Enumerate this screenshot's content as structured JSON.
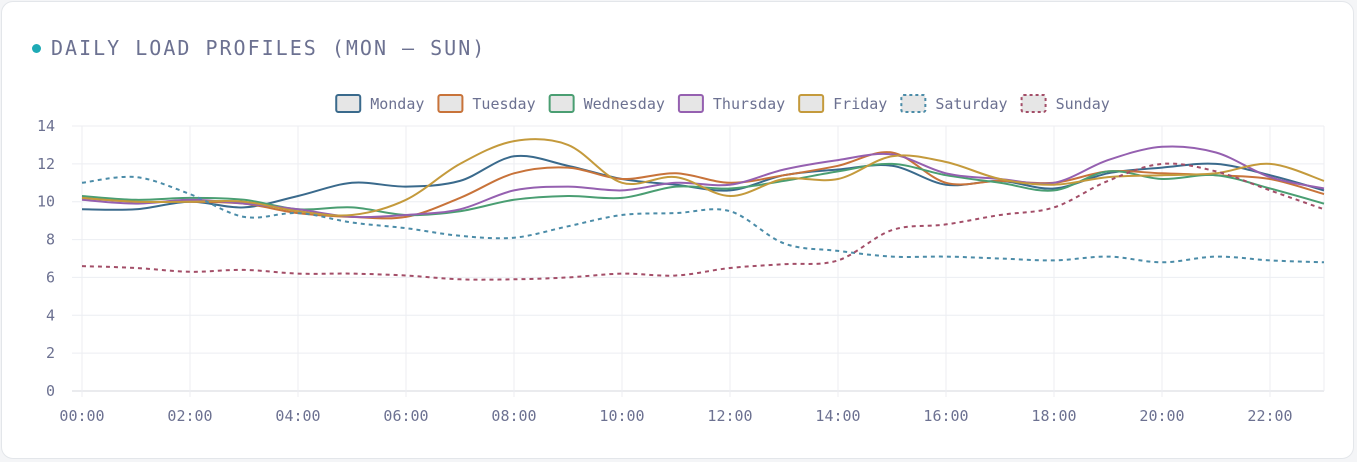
{
  "header": {
    "title": "DAILY LOAD PROFILES (MON – SUN)",
    "accent_color": "#1eaab5"
  },
  "chart_data": {
    "type": "line",
    "x_ticks": [
      "00:00",
      "02:00",
      "04:00",
      "06:00",
      "08:00",
      "10:00",
      "12:00",
      "14:00",
      "16:00",
      "18:00",
      "20:00",
      "22:00"
    ],
    "y_ticks": [
      0,
      2,
      4,
      6,
      8,
      10,
      12,
      14
    ],
    "ylim": [
      0,
      14
    ],
    "xlim_hours": [
      0,
      23
    ],
    "sample_hours": [
      0,
      1,
      2,
      3,
      4,
      5,
      6,
      7,
      8,
      9,
      10,
      11,
      12,
      13,
      14,
      15,
      16,
      17,
      18,
      19,
      20,
      21,
      22,
      23
    ],
    "grid": true,
    "legend_position": "top-center",
    "series": [
      {
        "name": "Monday",
        "color": "#3a6a8c",
        "dashed": false,
        "values": [
          9.6,
          9.6,
          10.0,
          9.7,
          10.3,
          11.0,
          10.8,
          11.1,
          12.4,
          11.9,
          11.2,
          10.9,
          10.6,
          11.4,
          11.7,
          11.9,
          10.9,
          11.1,
          10.7,
          11.5,
          11.8,
          12.0,
          11.4,
          10.6
        ]
      },
      {
        "name": "Tuesday",
        "color": "#c8733a",
        "dashed": false,
        "values": [
          10.2,
          10.0,
          10.0,
          9.9,
          9.4,
          9.2,
          9.2,
          10.2,
          11.5,
          11.8,
          11.2,
          11.5,
          11.0,
          11.4,
          11.9,
          12.6,
          11.0,
          11.1,
          11.0,
          11.6,
          11.5,
          11.4,
          11.2,
          10.4
        ]
      },
      {
        "name": "Wednesday",
        "color": "#4a9e72",
        "dashed": false,
        "values": [
          10.3,
          10.1,
          10.2,
          10.1,
          9.6,
          9.7,
          9.3,
          9.5,
          10.1,
          10.3,
          10.2,
          10.8,
          10.7,
          11.1,
          11.6,
          12.0,
          11.4,
          11.0,
          10.6,
          11.6,
          11.2,
          11.4,
          10.7,
          9.9
        ]
      },
      {
        "name": "Thursday",
        "color": "#9560b0",
        "dashed": false,
        "values": [
          10.1,
          9.9,
          10.1,
          9.9,
          9.6,
          9.2,
          9.3,
          9.6,
          10.6,
          10.8,
          10.6,
          11.0,
          10.9,
          11.7,
          12.2,
          12.5,
          11.5,
          11.2,
          11.0,
          12.2,
          12.9,
          12.6,
          11.3,
          10.7
        ]
      },
      {
        "name": "Friday",
        "color": "#c49a3c",
        "dashed": false,
        "values": [
          10.2,
          10.0,
          10.0,
          10.0,
          9.5,
          9.3,
          10.1,
          12.0,
          13.2,
          13.0,
          11.0,
          11.3,
          10.3,
          11.2,
          11.2,
          12.4,
          12.1,
          11.2,
          10.9,
          11.3,
          11.4,
          11.5,
          12.0,
          11.1
        ]
      },
      {
        "name": "Saturday",
        "color": "#4b8ca8",
        "dashed": true,
        "values": [
          11.0,
          11.3,
          10.4,
          9.2,
          9.4,
          8.9,
          8.6,
          8.2,
          8.1,
          8.7,
          9.3,
          9.4,
          9.5,
          7.8,
          7.4,
          7.1,
          7.1,
          7.0,
          6.9,
          7.1,
          6.8,
          7.1,
          6.9,
          6.8
        ]
      },
      {
        "name": "Sunday",
        "color": "#a34e68",
        "dashed": true,
        "values": [
          6.6,
          6.5,
          6.3,
          6.4,
          6.2,
          6.2,
          6.1,
          5.9,
          5.9,
          6.0,
          6.2,
          6.1,
          6.5,
          6.7,
          6.9,
          8.5,
          8.8,
          9.3,
          9.7,
          11.1,
          12.0,
          11.6,
          10.6,
          9.6
        ]
      }
    ]
  }
}
